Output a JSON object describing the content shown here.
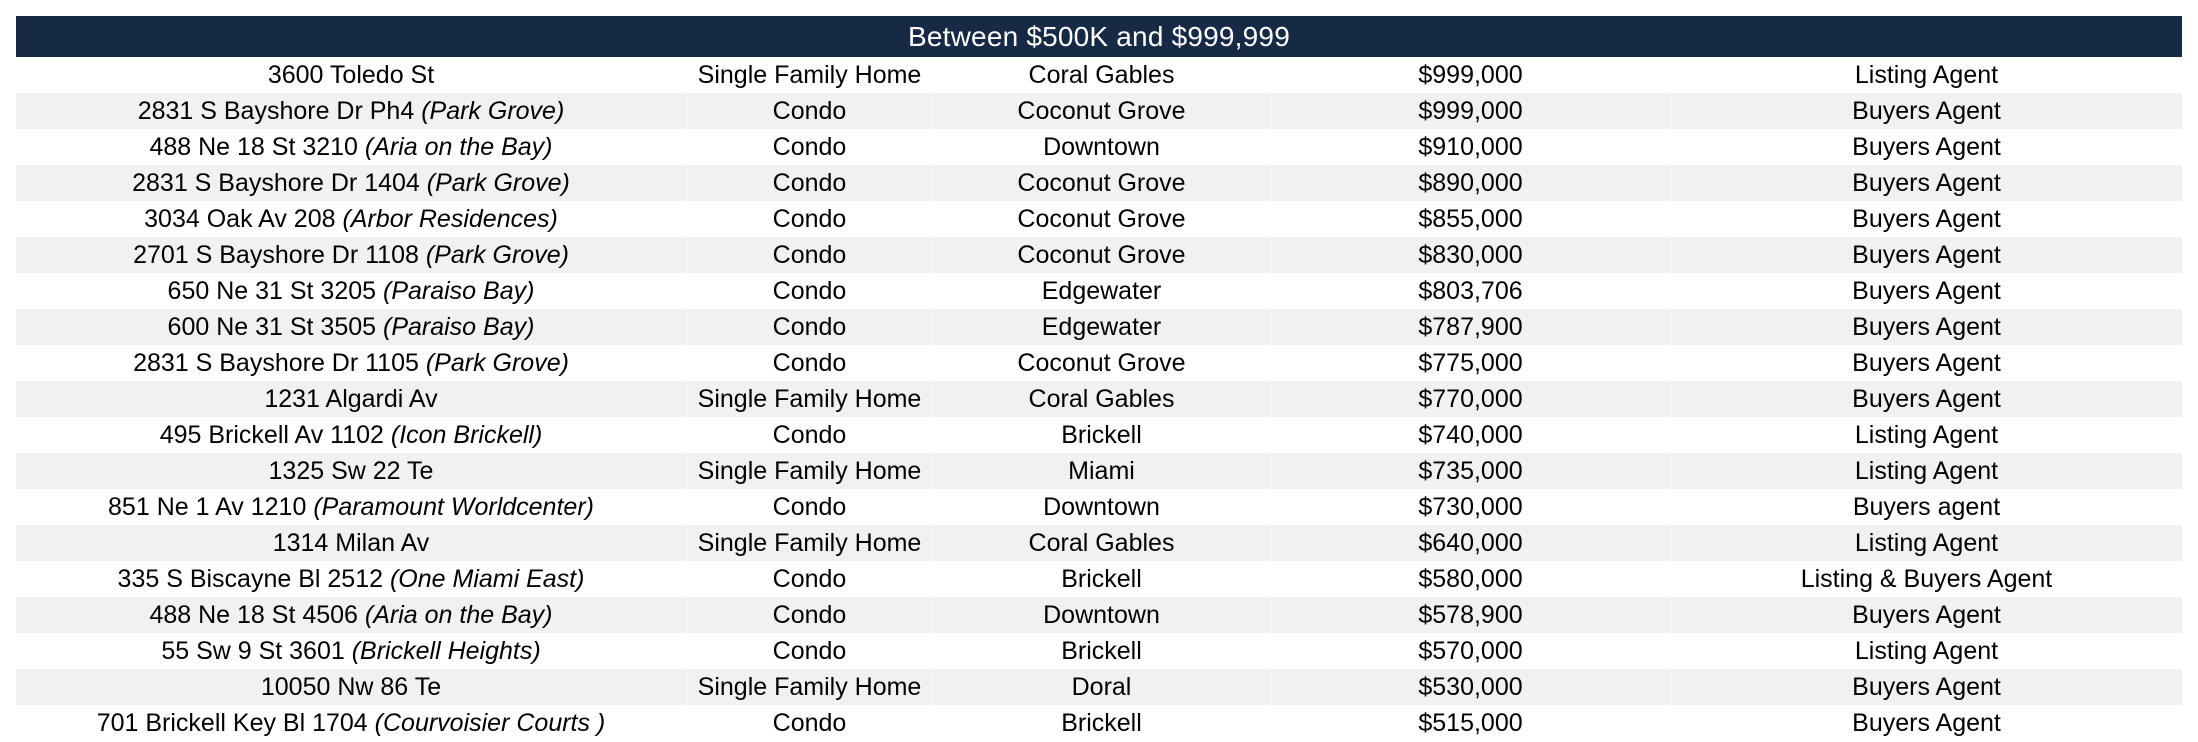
{
  "title": "Between $500K and $999,999",
  "rows": [
    {
      "address": "3600 Toledo St",
      "complex": "",
      "type": "Single Family Home",
      "neighborhood": "Coral Gables",
      "price": "$999,000",
      "role": "Listing Agent"
    },
    {
      "address": "2831 S Bayshore Dr Ph4",
      "complex": "(Park Grove)",
      "type": "Condo",
      "neighborhood": "Coconut Grove",
      "price": "$999,000",
      "role": "Buyers Agent"
    },
    {
      "address": "488 Ne 18 St 3210",
      "complex": "(Aria on the Bay)",
      "type": "Condo",
      "neighborhood": "Downtown",
      "price": "$910,000",
      "role": "Buyers Agent"
    },
    {
      "address": "2831 S Bayshore Dr 1404",
      "complex": "(Park Grove)",
      "type": "Condo",
      "neighborhood": "Coconut Grove",
      "price": "$890,000",
      "role": "Buyers Agent"
    },
    {
      "address": "3034 Oak Av 208",
      "complex": "(Arbor Residences)",
      "type": "Condo",
      "neighborhood": "Coconut Grove",
      "price": "$855,000",
      "role": "Buyers Agent"
    },
    {
      "address": "2701 S Bayshore Dr 1108",
      "complex": "(Park Grove)",
      "type": "Condo",
      "neighborhood": "Coconut Grove",
      "price": "$830,000",
      "role": "Buyers Agent"
    },
    {
      "address": "650 Ne 31 St 3205",
      "complex": "(Paraiso Bay)",
      "type": "Condo",
      "neighborhood": "Edgewater",
      "price": "$803,706",
      "role": "Buyers Agent"
    },
    {
      "address": "600 Ne 31 St 3505",
      "complex": "(Paraiso Bay)",
      "type": "Condo",
      "neighborhood": "Edgewater",
      "price": "$787,900",
      "role": "Buyers Agent"
    },
    {
      "address": "2831 S Bayshore Dr 1105",
      "complex": "(Park Grove)",
      "type": "Condo",
      "neighborhood": "Coconut Grove",
      "price": "$775,000",
      "role": "Buyers Agent"
    },
    {
      "address": "1231 Algardi Av",
      "complex": "",
      "type": "Single Family Home",
      "neighborhood": "Coral Gables",
      "price": "$770,000",
      "role": "Buyers Agent"
    },
    {
      "address": "495 Brickell Av 1102",
      "complex": "(Icon Brickell)",
      "type": "Condo",
      "neighborhood": "Brickell",
      "price": "$740,000",
      "role": "Listing Agent"
    },
    {
      "address": "1325 Sw 22 Te",
      "complex": "",
      "type": "Single Family Home",
      "neighborhood": "Miami",
      "price": "$735,000",
      "role": "Listing Agent"
    },
    {
      "address": "851 Ne 1 Av 1210",
      "complex": "(Paramount Worldcenter)",
      "type": "Condo",
      "neighborhood": "Downtown",
      "price": "$730,000",
      "role": "Buyers agent"
    },
    {
      "address": "1314 Milan Av",
      "complex": "",
      "type": "Single Family Home",
      "neighborhood": "Coral Gables",
      "price": "$640,000",
      "role": "Listing Agent"
    },
    {
      "address": "335 S Biscayne Bl 2512",
      "complex": "(One Miami East)",
      "type": "Condo",
      "neighborhood": "Brickell",
      "price": "$580,000",
      "role": "Listing & Buyers Agent"
    },
    {
      "address": "488 Ne 18 St 4506",
      "complex": "(Aria on the Bay)",
      "type": "Condo",
      "neighborhood": "Downtown",
      "price": "$578,900",
      "role": "Buyers Agent"
    },
    {
      "address": "55 Sw 9 St 3601",
      "complex": "(Brickell Heights)",
      "type": "Condo",
      "neighborhood": "Brickell",
      "price": "$570,000",
      "role": "Listing Agent"
    },
    {
      "address": "10050 Nw 86 Te",
      "complex": "",
      "type": "Single Family Home",
      "neighborhood": "Doral",
      "price": "$530,000",
      "role": "Buyers Agent"
    },
    {
      "address": "701 Brickell Key Bl 1704",
      "complex": "(Courvoisier Courts )",
      "type": "Condo",
      "neighborhood": "Brickell",
      "price": "$515,000",
      "role": "Buyers Agent"
    }
  ]
}
